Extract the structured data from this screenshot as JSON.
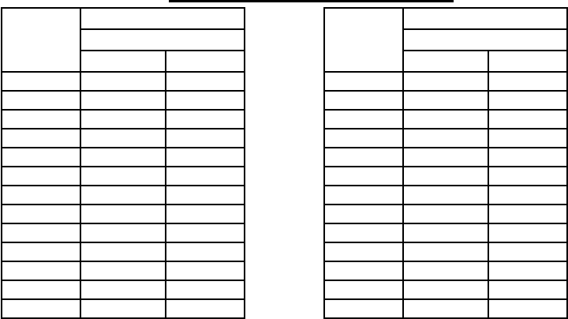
{
  "title": "",
  "tables": [
    {
      "header": {
        "corner": "",
        "group_top": "",
        "group_sub": "",
        "col_a": "",
        "col_b": ""
      },
      "rows": [
        [
          "",
          "",
          ""
        ],
        [
          "",
          "",
          ""
        ],
        [
          "",
          "",
          ""
        ],
        [
          "",
          "",
          ""
        ],
        [
          "",
          "",
          ""
        ],
        [
          "",
          "",
          ""
        ],
        [
          "",
          "",
          ""
        ],
        [
          "",
          "",
          ""
        ],
        [
          "",
          "",
          ""
        ],
        [
          "",
          "",
          ""
        ],
        [
          "",
          "",
          ""
        ],
        [
          "",
          "",
          ""
        ],
        [
          "",
          "",
          ""
        ]
      ]
    },
    {
      "header": {
        "corner": "",
        "group_top": "",
        "group_sub": "",
        "col_a": "",
        "col_b": ""
      },
      "rows": [
        [
          "",
          "",
          ""
        ],
        [
          "",
          "",
          ""
        ],
        [
          "",
          "",
          ""
        ],
        [
          "",
          "",
          ""
        ],
        [
          "",
          "",
          ""
        ],
        [
          "",
          "",
          ""
        ],
        [
          "",
          "",
          ""
        ],
        [
          "",
          "",
          ""
        ],
        [
          "",
          "",
          ""
        ],
        [
          "",
          "",
          ""
        ],
        [
          "",
          "",
          ""
        ],
        [
          "",
          "",
          ""
        ],
        [
          "",
          "",
          ""
        ]
      ]
    }
  ]
}
